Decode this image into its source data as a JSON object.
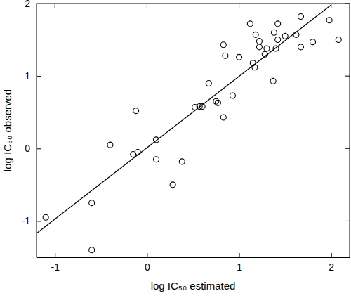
{
  "chart_data": {
    "type": "scatter",
    "x_label": "log IC₅₀ estimated",
    "y_label": "log IC₅₀ observed",
    "x": [
      -1.1,
      -0.6,
      -0.6,
      -0.4,
      -0.15,
      -0.12,
      -0.1,
      0.1,
      0.1,
      0.28,
      0.38,
      0.52,
      0.57,
      0.6,
      0.67,
      0.75,
      0.77,
      0.83,
      0.83,
      0.85,
      0.93,
      1.0,
      1.12,
      1.15,
      1.17,
      1.18,
      1.22,
      1.22,
      1.28,
      1.3,
      1.37,
      1.38,
      1.4,
      1.42,
      1.42,
      1.5,
      1.62,
      1.67,
      1.67,
      1.8,
      1.98,
      2.08
    ],
    "values": [
      -0.95,
      -0.75,
      -1.4,
      0.05,
      -0.08,
      0.52,
      -0.05,
      0.12,
      -0.15,
      -0.5,
      -0.18,
      0.57,
      0.58,
      0.58,
      0.9,
      0.65,
      0.63,
      1.43,
      0.43,
      1.28,
      0.73,
      1.26,
      1.72,
      1.18,
      1.12,
      1.57,
      1.48,
      1.4,
      1.3,
      1.38,
      0.93,
      1.6,
      1.38,
      1.5,
      1.72,
      1.55,
      1.57,
      1.82,
      1.4,
      1.47,
      1.77,
      1.5
    ],
    "marker": "open-circle",
    "color": "#000000",
    "fit": {
      "x": [
        -1.2,
        2.0
      ],
      "values": [
        -1.17,
        1.98
      ]
    },
    "xlim": [
      -1.2,
      2.2
    ],
    "xticks": [
      -1,
      0,
      1,
      2
    ],
    "ylim": [
      -1.5,
      2
    ],
    "yticks": [
      -1,
      0,
      1,
      2
    ],
    "grid": false
  }
}
